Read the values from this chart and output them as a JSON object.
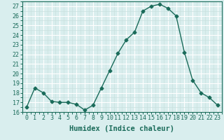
{
  "x": [
    0,
    1,
    2,
    3,
    4,
    5,
    6,
    7,
    8,
    9,
    10,
    11,
    12,
    13,
    14,
    15,
    16,
    17,
    18,
    19,
    20,
    21,
    22,
    23
  ],
  "y": [
    16.5,
    18.5,
    18.0,
    17.1,
    17.0,
    17.0,
    16.8,
    16.2,
    16.7,
    18.5,
    20.3,
    22.1,
    23.5,
    24.3,
    26.5,
    27.0,
    27.2,
    26.8,
    26.0,
    22.2,
    19.3,
    18.0,
    17.5,
    16.7
  ],
  "line_color": "#1a6b5a",
  "marker": "D",
  "marker_size": 2.5,
  "bg_color": "#d9eeee",
  "grid_major_color": "#ffffff",
  "grid_minor_color": "#c8e0de",
  "xlabel": "Humidex (Indice chaleur)",
  "xlim": [
    -0.5,
    23.5
  ],
  "ylim": [
    16,
    27.5
  ],
  "yticks": [
    16,
    17,
    18,
    19,
    20,
    21,
    22,
    23,
    24,
    25,
    26,
    27
  ],
  "xticks": [
    0,
    1,
    2,
    3,
    4,
    5,
    6,
    7,
    8,
    9,
    10,
    11,
    12,
    13,
    14,
    15,
    16,
    17,
    18,
    19,
    20,
    21,
    22,
    23
  ],
  "tick_color": "#1a6b5a",
  "label_color": "#1a6b5a",
  "axis_color": "#1a6b5a",
  "font_size": 6,
  "xlabel_fontsize": 7.5
}
